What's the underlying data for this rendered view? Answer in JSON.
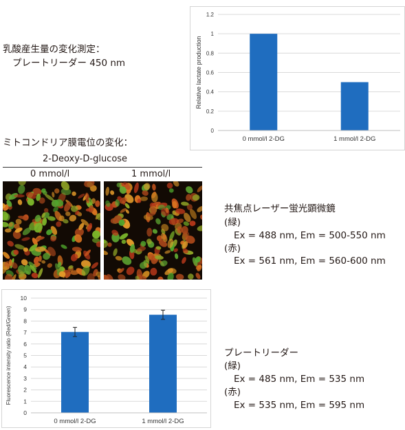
{
  "lactate_section": {
    "line1": "乳酸産生量の変化測定：",
    "line2": "プレートリーダー 450 nm"
  },
  "mito_section": {
    "title": "ミトコンドリア膜電位の変化：",
    "compound": "2-Deoxy-D-glucose",
    "conc_left": "0 mmol/l",
    "conc_right": "1 mmol/l"
  },
  "confocal_section": {
    "title": "共焦点レーザー蛍光顕微鏡",
    "green_label": "(緑)",
    "green_values": "Ex = 488 nm, Em = 500-550 nm",
    "red_label": "(赤)",
    "red_values": "Ex = 561 nm, Em = 560-600 nm"
  },
  "plate_section": {
    "title": "プレートリーダー",
    "green_label": "(緑)",
    "green_values": "Ex = 485 nm, Em = 535 nm",
    "red_label": "(赤)",
    "red_values": "Ex = 535 nm, Em = 595 nm"
  },
  "chart_data": [
    {
      "type": "bar",
      "categories": [
        "0 mmol/l 2-DG",
        "1 mmol/l 2-DG"
      ],
      "values": [
        1.0,
        0.5
      ],
      "ylabel": "Relative lactate production",
      "ylim": [
        0,
        1.2
      ],
      "yticks": [
        "0",
        "0.2",
        "0.4",
        "0.6",
        "0.8",
        "1",
        "1.2"
      ],
      "grid": true,
      "color": "#1f6dbf"
    },
    {
      "type": "bar",
      "categories": [
        "0 mmol/l 2-DG",
        "1 mmol/l 2-DG"
      ],
      "values": [
        7.05,
        8.55
      ],
      "errors": [
        0.4,
        0.4
      ],
      "ylabel": "Fluorescence intensity ratio (Red/Green)",
      "ylim": [
        0,
        10
      ],
      "yticks": [
        "0",
        "1",
        "2",
        "3",
        "4",
        "5",
        "6",
        "7",
        "8",
        "9",
        "10"
      ],
      "grid": true,
      "color": "#1f6dbf"
    }
  ]
}
